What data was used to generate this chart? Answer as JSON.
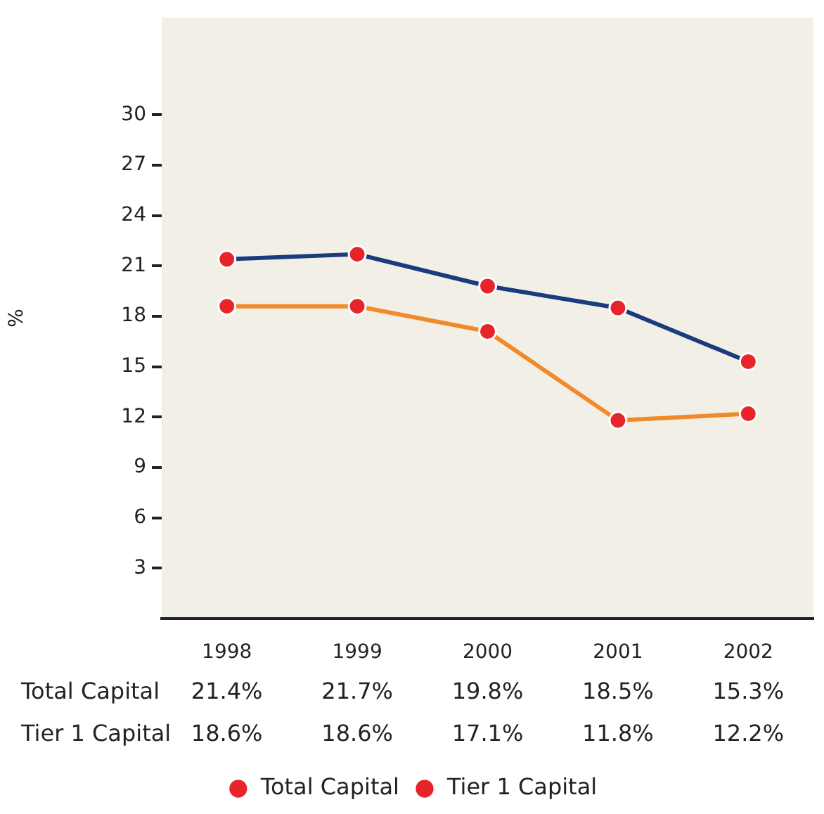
{
  "chart_data": {
    "type": "line",
    "ylabel": "%",
    "categories": [
      "1998",
      "1999",
      "2000",
      "2001",
      "2002"
    ],
    "series": [
      {
        "name": "Total Capital",
        "color": "#1b3b7c",
        "values": [
          21.4,
          21.7,
          19.8,
          18.5,
          15.3
        ],
        "value_labels": [
          "21.4%",
          "21.7%",
          "19.8%",
          "18.5%",
          "15.3%"
        ]
      },
      {
        "name": "Tier 1 Capital",
        "color": "#f08a2a",
        "values": [
          18.6,
          18.6,
          17.1,
          11.8,
          12.2
        ],
        "value_labels": [
          "18.6%",
          "18.6%",
          "17.1%",
          "11.8%",
          "12.2%"
        ]
      }
    ],
    "ylim": [
      0,
      35.8
    ],
    "yticks": [
      3,
      6,
      9,
      12,
      15,
      18,
      21,
      24,
      27,
      30
    ],
    "grid": false,
    "legend": "bottom",
    "marker": "circle",
    "line_style": "solid"
  }
}
